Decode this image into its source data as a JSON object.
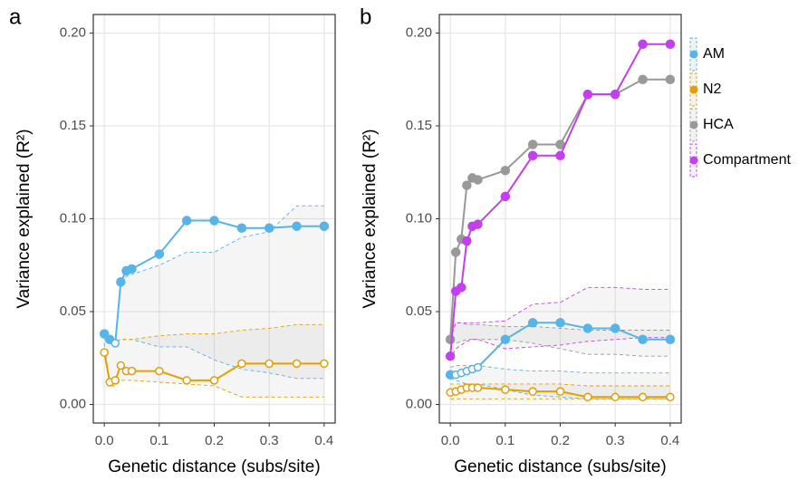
{
  "chart_data": [
    {
      "type": "line",
      "panel_label": "a",
      "xlabel": "Genetic distance (subs/site)",
      "ylabel": "Variance explained (R²)",
      "x": [
        0,
        0.01,
        0.02,
        0.03,
        0.04,
        0.05,
        0.1,
        0.15,
        0.2,
        0.25,
        0.3,
        0.35,
        0.4
      ],
      "xlim": [
        -0.02,
        0.42
      ],
      "ylim": [
        -0.01,
        0.21
      ],
      "xticks": [
        {
          "value": 0,
          "label": "0.0"
        },
        0.1,
        0.2,
        0.3,
        0.4
      ],
      "yticks": [
        {
          "value": 0,
          "label": "0.00"
        },
        0.05,
        {
          "value": 0.1,
          "label": "0.10"
        },
        0.15,
        {
          "value": 0.2,
          "label": "0.20"
        }
      ],
      "grid": true,
      "series": [
        {
          "name": "AM",
          "color": "#56b4e9",
          "values": [
            0.038,
            0.035,
            0.033,
            0.066,
            0.072,
            0.073,
            0.081,
            0.099,
            0.099,
            0.095,
            0.095,
            0.096,
            0.096
          ],
          "filled": [
            true,
            true,
            false,
            true,
            true,
            true,
            true,
            true,
            true,
            true,
            true,
            true,
            true
          ],
          "ci_upper": [
            0.036,
            0.035,
            0.035,
            0.067,
            0.069,
            0.07,
            0.075,
            0.082,
            0.082,
            0.09,
            0.093,
            0.107,
            0.107
          ],
          "ci_lower": [
            0.035,
            0.034,
            0.034,
            0.035,
            0.035,
            0.035,
            0.031,
            0.031,
            0.024,
            0.019,
            0.017,
            0.014,
            0.014
          ]
        },
        {
          "name": "N2",
          "color": "#e69f00",
          "values": [
            0.028,
            0.012,
            0.013,
            0.021,
            0.018,
            0.018,
            0.018,
            0.013,
            0.013,
            0.022,
            0.022,
            0.022,
            0.022
          ],
          "filled": [
            false,
            false,
            false,
            false,
            false,
            false,
            false,
            false,
            false,
            false,
            false,
            false,
            false
          ],
          "ci_upper": [
            0.035,
            0.035,
            0.034,
            0.035,
            0.035,
            0.035,
            0.037,
            0.038,
            0.038,
            0.04,
            0.041,
            0.043,
            0.043
          ],
          "ci_lower": [
            0.033,
            0.01,
            0.01,
            0.013,
            0.013,
            0.013,
            0.012,
            0.011,
            0.01,
            0.004,
            0.004,
            0.004,
            0.004
          ]
        }
      ]
    },
    {
      "type": "line",
      "panel_label": "b",
      "xlabel": "Genetic distance (subs/site)",
      "ylabel": "Variance explained (R²)",
      "x": [
        0,
        0.01,
        0.02,
        0.03,
        0.04,
        0.05,
        0.1,
        0.15,
        0.2,
        0.25,
        0.3,
        0.35,
        0.4
      ],
      "xlim": [
        -0.02,
        0.42
      ],
      "ylim": [
        -0.01,
        0.21
      ],
      "xticks": [
        {
          "value": 0,
          "label": "0.0"
        },
        0.1,
        0.2,
        0.3,
        0.4
      ],
      "yticks": [
        {
          "value": 0,
          "label": "0.00"
        },
        0.05,
        {
          "value": 0.1,
          "label": "0.10"
        },
        0.15,
        {
          "value": 0.2,
          "label": "0.20"
        }
      ],
      "grid": true,
      "legend": "right",
      "series": [
        {
          "name": "AM",
          "color": "#56b4e9",
          "values": [
            0.016,
            0.016,
            0.017,
            0.018,
            0.019,
            0.02,
            0.035,
            0.044,
            0.044,
            0.041,
            0.041,
            0.035,
            0.035
          ],
          "filled": [
            true,
            false,
            false,
            false,
            false,
            false,
            true,
            true,
            true,
            true,
            true,
            true,
            true
          ],
          "ci_upper": [
            0.02,
            0.021,
            0.021,
            0.021,
            0.021,
            0.021,
            0.019,
            0.018,
            0.018,
            0.017,
            0.017,
            0.017,
            0.017
          ],
          "ci_lower": [
            0.014,
            0.013,
            0.012,
            0.011,
            0.011,
            0.011,
            0.008,
            0.005,
            0.004,
            0.003,
            0.003,
            0.003,
            0.003
          ]
        },
        {
          "name": "N2",
          "color": "#e69f00",
          "values": [
            0.0065,
            0.007,
            0.008,
            0.009,
            0.009,
            0.009,
            0.008,
            0.007,
            0.007,
            0.004,
            0.004,
            0.004,
            0.004
          ],
          "filled": [
            false,
            false,
            false,
            false,
            false,
            false,
            false,
            false,
            false,
            false,
            false,
            false,
            false
          ],
          "ci_upper": [
            0.011,
            0.011,
            0.011,
            0.011,
            0.011,
            0.011,
            0.011,
            0.011,
            0.011,
            0.01,
            0.01,
            0.01,
            0.01
          ],
          "ci_lower": [
            0.003,
            0.003,
            0.003,
            0.003,
            0.003,
            0.003,
            0.003,
            0.003,
            0.003,
            0.003,
            0.003,
            0.003,
            0.003
          ]
        },
        {
          "name": "HCA",
          "color": "#999999",
          "values": [
            0.035,
            0.082,
            0.089,
            0.118,
            0.122,
            0.121,
            0.126,
            0.14,
            0.14,
            0.167,
            0.167,
            0.175,
            0.175
          ],
          "filled": [
            true,
            true,
            true,
            true,
            true,
            true,
            true,
            true,
            true,
            true,
            true,
            true,
            true
          ],
          "ci_upper": [
            0.035,
            0.044,
            0.044,
            0.043,
            0.043,
            0.043,
            0.042,
            0.042,
            0.041,
            0.04,
            0.04,
            0.04,
            0.04
          ],
          "ci_lower": [
            0.033,
            0.033,
            0.034,
            0.035,
            0.035,
            0.035,
            0.035,
            0.033,
            0.03,
            0.027,
            0.027,
            0.026,
            0.026
          ]
        },
        {
          "name": "Compartment",
          "color": "#c43ff0",
          "values": [
            0.026,
            0.061,
            0.063,
            0.088,
            0.096,
            0.097,
            0.112,
            0.134,
            0.134,
            0.167,
            0.167,
            0.194,
            0.194
          ],
          "filled": [
            true,
            true,
            true,
            true,
            true,
            true,
            true,
            true,
            true,
            true,
            true,
            true,
            true
          ],
          "ci_upper": [
            0.035,
            0.044,
            0.044,
            0.044,
            0.044,
            0.044,
            0.045,
            0.054,
            0.055,
            0.063,
            0.063,
            0.062,
            0.062
          ],
          "ci_lower": [
            0.024,
            0.03,
            0.032,
            0.034,
            0.035,
            0.035,
            0.03,
            0.031,
            0.032,
            0.034,
            0.035,
            0.036,
            0.036
          ]
        }
      ]
    }
  ]
}
